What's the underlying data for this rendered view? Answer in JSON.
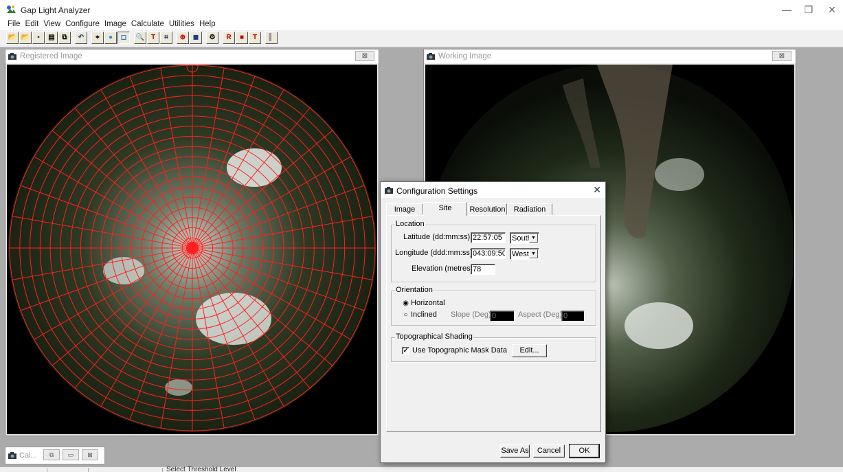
{
  "window": {
    "title": "Gap Light Analyzer",
    "minimize_glyph": "—",
    "restore_glyph": "❐",
    "close_glyph": "✕"
  },
  "menu": [
    "File",
    "Edit",
    "View",
    "Configure",
    "Image",
    "Calculate",
    "Utilities",
    "Help"
  ],
  "toolbar": {
    "buttons": [
      {
        "name": "open-icon",
        "glyph": "📂"
      },
      {
        "name": "open-registered-icon",
        "glyph": "📂"
      },
      {
        "name": "save-icon",
        "glyph": "▪"
      },
      {
        "name": "print-icon",
        "glyph": "▤"
      },
      {
        "name": "copy-icon",
        "glyph": "⧉"
      },
      {
        "name": "undo-icon",
        "glyph": "↶"
      },
      {
        "name": "register-icon",
        "glyph": "⌖"
      },
      {
        "name": "fisheye-icon",
        "glyph": "●"
      },
      {
        "name": "working-image-icon",
        "glyph": "◻"
      },
      {
        "name": "zoom-icon",
        "glyph": "🔍"
      },
      {
        "name": "threshold-icon",
        "glyph": "T"
      },
      {
        "name": "crop-icon",
        "glyph": "⌗"
      },
      {
        "name": "overlay-icon",
        "glyph": "⊕"
      },
      {
        "name": "frame-icon",
        "glyph": "◼"
      },
      {
        "name": "configure-icon",
        "glyph": "⚙"
      },
      {
        "name": "path-icon",
        "glyph": "R"
      },
      {
        "name": "color-icon",
        "glyph": "■"
      },
      {
        "name": "text-icon",
        "glyph": "T"
      },
      {
        "name": "separator-icon",
        "glyph": "▌"
      }
    ]
  },
  "registered_window": {
    "title": "Registered Image",
    "close_glyph": "⊠"
  },
  "working_window": {
    "title": "Working Image",
    "close_glyph": "⊠"
  },
  "minimized_window": {
    "title": "Cal...",
    "restore_glyph": "⧉",
    "max_glyph": "▭",
    "close_glyph": "⊠"
  },
  "statusbar": {
    "text": "Select Threshold Level"
  },
  "dialog": {
    "title": "Configuration Settings",
    "close_glyph": "✕",
    "tabs": {
      "image": "Image",
      "site": "Site",
      "resolution": "Resolution",
      "radiation": "Radiation"
    },
    "location": {
      "title": "Location",
      "latitude_label": "Latitude (dd:mm:ss):",
      "latitude_value": "22:57:05",
      "latitude_hemisphere": "South",
      "longitude_label": "Longitude (ddd:mm:ss):",
      "longitude_value": "043:09:50",
      "longitude_hemisphere": "West",
      "elevation_label": "Elevation (metres):",
      "elevation_value": "78"
    },
    "orientation": {
      "title": "Orientation",
      "horizontal_label": "Horizontal",
      "inclined_label": "Inclined",
      "selected": "Horizontal",
      "slope_label": "Slope (Deg):",
      "slope_value": "0",
      "aspect_label": "Aspect (Deg):",
      "aspect_value": "0"
    },
    "topo": {
      "title": "Topographical Shading",
      "checkbox_label": "Use Topographic Mask Data",
      "checked": true,
      "edit_label": "Edit..."
    },
    "buttons": {
      "save_as": "Save As",
      "cancel": "Cancel",
      "ok": "OK"
    }
  }
}
